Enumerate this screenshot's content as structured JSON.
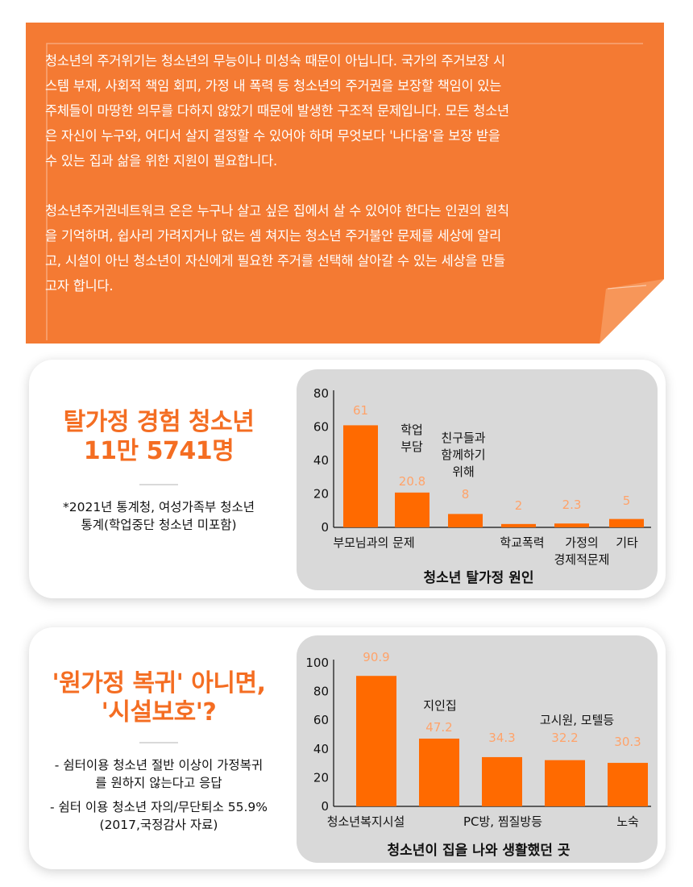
{
  "intro": {
    "paragraph1_lines": [
      "청소년의 주거위기는 청소년의 무능이나 미성숙 때문이 아닙니다. 국가의 주거보장 시",
      "스템 부재, 사회적 책임 회피, 가정 내 폭력 등 청소년의 주거권을 보장할 책임이 있는",
      "주체들이 마땅한 의무를 다하지 않았기 때문에 발생한 구조적 문제입니다. 모든 청소년",
      "은 자신이 누구와, 어디서 살지 결정할 수 있어야 하며 무엇보다 '나다움'을 보장 받을",
      "수 있는 집과 삶을 위한 지원이 필요합니다."
    ],
    "paragraph2_lines": [
      "청소년주거권네트워크 온은 누구나 살고 싶은 집에서 살 수 있어야 한다는 인권의 원칙",
      "을 기억하며, 쉽사리 가려지거나 없는 셈 쳐지는 청소년 주거불안 문제를 세상에 알리",
      "고, 시설이 아닌 청소년이 자신에게 필요한 주거를 선택해 살아갈 수 있는 세상을 만들",
      "고자 합니다."
    ],
    "background_color": "#f47a33"
  },
  "card1": {
    "headline_lines": [
      "탈가정 경험 청소년",
      "11만 5741명"
    ],
    "note_lines": [
      "*2021년 통계청, 여성가족부 청소년",
      "통계(학업중단 청소년 미포함)"
    ]
  },
  "card2": {
    "headline_lines": [
      "'원가정 복귀' 아니면,",
      "'시설보호'?"
    ],
    "bullets": [
      [
        "- 쉼터이용 청소년 절반 이상이 가정복귀",
        "를 원하지 않는다고 응답"
      ],
      [
        "- 쉼터 이용 청소년 자의/무단퇴소 55.9%",
        "(2017,국정감사 자료)"
      ]
    ]
  },
  "chart_data": [
    {
      "type": "bar",
      "title": "청소년 탈가정 원인",
      "categories": [
        [
          "부모님과의 문제"
        ],
        [
          "학업",
          "부담"
        ],
        [
          "친구들과",
          "함께하기",
          "위해"
        ],
        [
          "학교폭력"
        ],
        [
          "가정의",
          "경제적문제"
        ],
        [
          "기타"
        ]
      ],
      "values": [
        61,
        20.8,
        8,
        2,
        2.3,
        5
      ],
      "value_labels": [
        "61",
        "20.8",
        "8",
        "2",
        "2.3",
        "5"
      ],
      "yticks": [
        0,
        20,
        40,
        60,
        80
      ],
      "ylim": [
        0,
        80
      ],
      "grid": false,
      "bar_color": "#ff6a00",
      "label_color": "#ffa36a"
    },
    {
      "type": "bar",
      "title": "청소년이 집을 나와 생활했던 곳",
      "categories": [
        [
          "청소년복지시설"
        ],
        [
          "지인집"
        ],
        [
          "PC방, 찜질방등"
        ],
        [
          "고시원, 모텔등"
        ],
        [
          "노숙"
        ]
      ],
      "values": [
        90.9,
        47.2,
        34.3,
        32.2,
        30.3
      ],
      "value_labels": [
        "90.9",
        "47.2",
        "34.3",
        "32.2",
        "30.3"
      ],
      "yticks": [
        0,
        20,
        40,
        60,
        80,
        100
      ],
      "ylim": [
        0,
        100
      ],
      "grid": false,
      "bar_color": "#ff6a00",
      "label_color": "#ffa36a"
    }
  ]
}
